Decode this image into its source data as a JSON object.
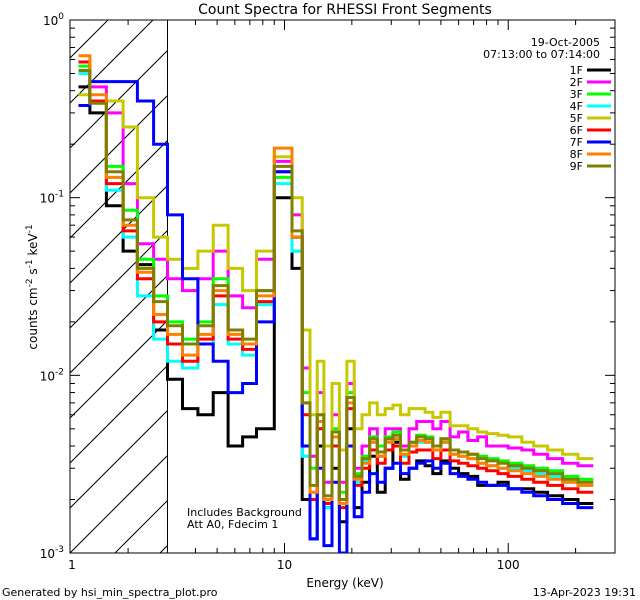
{
  "chart_data": {
    "type": "line",
    "title": "Count Spectra for RHESSI Front Segments",
    "xlabel": "Energy (keV)",
    "ylabel": "counts cm^-2 s^-1 keV^-1",
    "x_scale": "log",
    "y_scale": "log",
    "xlim": [
      1.1,
      300
    ],
    "ylim": [
      0.001,
      1.0
    ],
    "x_ticks": [
      {
        "v": 1,
        "label": "1"
      },
      {
        "v": 10,
        "label": "10"
      },
      {
        "v": 100,
        "label": "100"
      }
    ],
    "y_ticks": [
      {
        "v": 1.0,
        "base": "10",
        "exp": "0"
      },
      {
        "v": 0.1,
        "base": "10",
        "exp": "-1"
      },
      {
        "v": 0.01,
        "base": "10",
        "exp": "-2"
      },
      {
        "v": 0.001,
        "base": "10",
        "exp": "-3"
      }
    ],
    "hatched_region_max_keV": 3,
    "legend": {
      "date": "19-Oct-2005",
      "time_range": "07:13:00 to 07:14:00",
      "position": "top-right"
    },
    "annotations": [
      "Includes Background",
      "Att A0, Fdecim 1"
    ],
    "series": [
      {
        "name": "1F",
        "color": "#000000",
        "values": [
          0.42,
          0.3,
          0.09,
          0.05,
          0.042,
          0.018,
          0.0095,
          0.0065,
          0.006,
          0.008,
          0.004,
          0.0045,
          0.005,
          0.1,
          0.04,
          0.002,
          0.0012,
          0.004,
          0.0018,
          0.003,
          0.0015,
          0.005,
          0.0018,
          0.0025,
          0.0035,
          0.0022,
          0.003,
          0.0042,
          0.0026,
          0.003,
          0.0033,
          0.0031,
          0.0028,
          0.0033,
          0.003,
          0.0028,
          0.0027,
          0.0024,
          0.0024,
          0.0025,
          0.0023,
          0.0023,
          0.0022,
          0.0021,
          0.002,
          0.0019
        ]
      },
      {
        "name": "2F",
        "color": "#ff00ff",
        "values": [
          0.5,
          0.42,
          0.3,
          0.12,
          0.055,
          0.045,
          0.035,
          0.03,
          0.035,
          0.05,
          0.028,
          0.024,
          0.045,
          0.16,
          0.08,
          0.011,
          0.0035,
          0.008,
          0.0025,
          0.006,
          0.0025,
          0.009,
          0.003,
          0.004,
          0.005,
          0.004,
          0.005,
          0.005,
          0.004,
          0.005,
          0.0055,
          0.0055,
          0.005,
          0.0055,
          0.0045,
          0.0048,
          0.0043,
          0.0045,
          0.004,
          0.004,
          0.0039,
          0.0038,
          0.0036,
          0.0034,
          0.0032,
          0.0031
        ]
      },
      {
        "name": "3F",
        "color": "#00ff00",
        "values": [
          0.55,
          0.35,
          0.15,
          0.085,
          0.045,
          0.028,
          0.02,
          0.016,
          0.02,
          0.035,
          0.018,
          0.015,
          0.03,
          0.13,
          0.05,
          0.008,
          0.003,
          0.006,
          0.002,
          0.005,
          0.0022,
          0.008,
          0.0028,
          0.0035,
          0.0045,
          0.004,
          0.0045,
          0.0048,
          0.0038,
          0.0042,
          0.0046,
          0.0045,
          0.004,
          0.0044,
          0.0038,
          0.0037,
          0.0036,
          0.0035,
          0.0034,
          0.0033,
          0.0032,
          0.0031,
          0.003,
          0.0029,
          0.0027,
          0.0026
        ]
      },
      {
        "name": "4F",
        "color": "#00ffff",
        "values": [
          0.5,
          0.35,
          0.11,
          0.06,
          0.028,
          0.016,
          0.012,
          0.011,
          0.015,
          0.025,
          0.015,
          0.013,
          0.025,
          0.12,
          0.05,
          0.0035,
          0.0012,
          0.005,
          0.0018,
          0.004,
          0.002,
          0.0075,
          0.0025,
          0.0033,
          0.0042,
          0.0035,
          0.0042,
          0.0044,
          0.0035,
          0.004,
          0.0042,
          0.0042,
          0.0038,
          0.0042,
          0.0036,
          0.0035,
          0.0034,
          0.0032,
          0.0031,
          0.003,
          0.003,
          0.0029,
          0.0028,
          0.0027,
          0.0025,
          0.0024
        ]
      },
      {
        "name": "5F",
        "color": "#c8c800",
        "values": [
          0.38,
          0.35,
          0.35,
          0.25,
          0.1,
          0.06,
          0.045,
          0.04,
          0.05,
          0.07,
          0.04,
          0.03,
          0.05,
          0.17,
          0.1,
          0.018,
          0.006,
          0.012,
          0.004,
          0.009,
          0.0038,
          0.012,
          0.005,
          0.006,
          0.007,
          0.006,
          0.0065,
          0.0068,
          0.006,
          0.0065,
          0.0065,
          0.0062,
          0.0058,
          0.0062,
          0.0052,
          0.0052,
          0.005,
          0.0048,
          0.0047,
          0.0046,
          0.0045,
          0.0042,
          0.004,
          0.0038,
          0.0036,
          0.0034
        ]
      },
      {
        "name": "6F",
        "color": "#ff0000",
        "values": [
          0.58,
          0.35,
          0.12,
          0.065,
          0.035,
          0.02,
          0.015,
          0.012,
          0.016,
          0.028,
          0.016,
          0.014,
          0.026,
          0.14,
          0.06,
          0.006,
          0.002,
          0.005,
          0.0019,
          0.004,
          0.0018,
          0.0065,
          0.0024,
          0.003,
          0.0038,
          0.0032,
          0.0038,
          0.004,
          0.0032,
          0.0037,
          0.0038,
          0.0038,
          0.0034,
          0.0038,
          0.0033,
          0.0032,
          0.0031,
          0.003,
          0.0029,
          0.0028,
          0.0027,
          0.0026,
          0.0025,
          0.0024,
          0.0023,
          0.0022
        ]
      },
      {
        "name": "7F",
        "color": "#0000ff",
        "values": [
          0.33,
          0.45,
          0.45,
          0.45,
          0.35,
          0.2,
          0.08,
          0.035,
          0.015,
          0.012,
          0.008,
          0.009,
          0.02,
          0.14,
          0.06,
          0.004,
          0.0012,
          0.003,
          0.0011,
          0.0025,
          0.001,
          0.004,
          0.0016,
          0.0022,
          0.0028,
          0.0025,
          0.003,
          0.0032,
          0.0028,
          0.003,
          0.0032,
          0.0033,
          0.003,
          0.0032,
          0.0028,
          0.0027,
          0.0026,
          0.0025,
          0.0024,
          0.0024,
          0.0023,
          0.0022,
          0.0021,
          0.002,
          0.0019,
          0.0018
        ]
      },
      {
        "name": "8F",
        "color": "#ff7f00",
        "values": [
          0.63,
          0.38,
          0.13,
          0.07,
          0.038,
          0.022,
          0.017,
          0.013,
          0.017,
          0.03,
          0.017,
          0.015,
          0.028,
          0.19,
          0.06,
          0.007,
          0.0022,
          0.0055,
          0.002,
          0.0045,
          0.0019,
          0.007,
          0.0026,
          0.0032,
          0.0042,
          0.0035,
          0.0042,
          0.0044,
          0.0036,
          0.004,
          0.0043,
          0.0042,
          0.0038,
          0.0042,
          0.0036,
          0.0035,
          0.0034,
          0.0032,
          0.0031,
          0.003,
          0.0029,
          0.0028,
          0.0027,
          0.0026,
          0.0025,
          0.0024
        ]
      },
      {
        "name": "9F",
        "color": "#808000",
        "values": [
          0.52,
          0.34,
          0.14,
          0.075,
          0.04,
          0.026,
          0.019,
          0.015,
          0.019,
          0.032,
          0.018,
          0.016,
          0.03,
          0.15,
          0.065,
          0.007,
          0.0024,
          0.006,
          0.0021,
          0.0048,
          0.002,
          0.0075,
          0.0027,
          0.0034,
          0.0044,
          0.0037,
          0.0044,
          0.0046,
          0.0038,
          0.0042,
          0.0045,
          0.0044,
          0.004,
          0.0044,
          0.0038,
          0.0037,
          0.0036,
          0.0034,
          0.0033,
          0.0032,
          0.0031,
          0.003,
          0.0029,
          0.0028,
          0.0026,
          0.0025
        ]
      }
    ],
    "x_bin_edges": [
      1.2,
      1.35,
      1.6,
      1.9,
      2.2,
      2.6,
      3.0,
      3.5,
      4.1,
      4.8,
      5.6,
      6.5,
      7.5,
      9.0,
      10.8,
      12.0,
      13.0,
      14.0,
      15.0,
      16.3,
      17.6,
      19.0,
      20.5,
      22.2,
      24.0,
      26.0,
      28.2,
      30.5,
      33.0,
      36.0,
      39.0,
      42.5,
      46.0,
      50.0,
      55.0,
      60.0,
      66.0,
      73.0,
      80.0,
      90.0,
      100.0,
      115.0,
      130.0,
      150.0,
      175.0,
      205.0,
      240.0
    ]
  },
  "footer": {
    "left": "Generated by hsi_min_spectra_plot.pro",
    "right": "13-Apr-2023 19:31"
  }
}
